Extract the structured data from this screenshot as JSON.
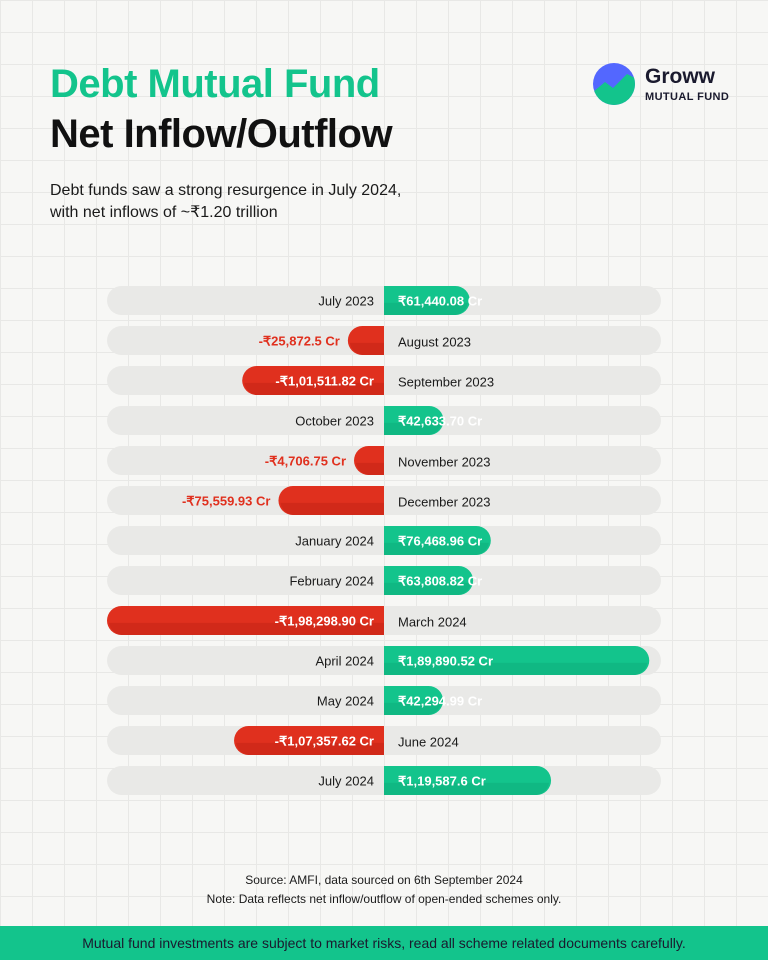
{
  "header": {
    "title_line1": "Debt Mutual Fund",
    "title_line2": "Net Inflow/Outflow",
    "subtitle_line1": "Debt funds saw a strong resurgence in July 2024,",
    "subtitle_line2": "with net inflows of ~₹1.20 trillion"
  },
  "logo": {
    "name": "Groww",
    "sub": "MUTUAL FUND",
    "icon": "groww-logo-icon"
  },
  "colors": {
    "positive": "#13c48c",
    "negative": "#e0301e",
    "negative_label": "#e0301e",
    "track": "#e9e9e7"
  },
  "chart_data": {
    "type": "bar",
    "orientation": "horizontal-diverging",
    "title": "Debt Mutual Fund Net Inflow/Outflow",
    "unit": "₹ Cr",
    "categories": [
      "July 2023",
      "August 2023",
      "September 2023",
      "October 2023",
      "November 2023",
      "December 2023",
      "January 2024",
      "February 2024",
      "March 2024",
      "April 2024",
      "May 2024",
      "June 2024",
      "July 2024"
    ],
    "values": [
      61440.08,
      -25872.5,
      -101511.82,
      42633.7,
      -4706.75,
      -75559.93,
      76468.96,
      63808.82,
      -198298.9,
      189890.52,
      42294.99,
      -107357.62,
      119587.6
    ],
    "value_labels": [
      "₹61,440.08 Cr",
      "-₹25,872.5 Cr",
      "-₹1,01,511.82 Cr",
      "₹42,633.70 Cr",
      "-₹4,706.75 Cr",
      "-₹75,559.93 Cr",
      "₹76,468.96 Cr",
      "₹63,808.82 Cr",
      "-₹1,98,298.90 Cr",
      "₹1,89,890.52 Cr",
      "₹42,294.99 Cr",
      "-₹1,07,357.62 Cr",
      "₹1,19,587.6 Cr"
    ],
    "xlim": [
      -198298.9,
      198298.9
    ]
  },
  "footer": {
    "source": "Source: AMFI, data sourced on 6th September 2024",
    "note": "Note: Data reflects net inflow/outflow of open-ended schemes only.",
    "disclaimer": "Mutual fund investments are subject to market risks, read all scheme related documents carefully."
  }
}
